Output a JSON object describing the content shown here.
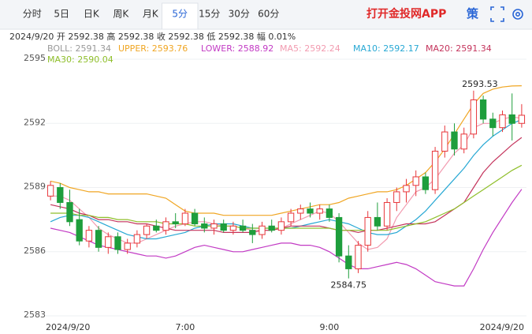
{
  "tabs": [
    "分时",
    "5日",
    "日K",
    "周K",
    "月K",
    "5分",
    "15分",
    "30分",
    "60分"
  ],
  "active_tab": 5,
  "brand": "打开金投网APP",
  "side_button": "策",
  "chart_data": {
    "type": "candlestick",
    "info": "2024/9/20  开 2592.38  高 2592.38  收 2592.38  低 2592.38  幅 0.01%",
    "boll_label": "BOLL: 2591.34",
    "categories": [
      "2024/9/20",
      null,
      null,
      null,
      null,
      null,
      null,
      null,
      null,
      null,
      null,
      null,
      null,
      null,
      "7:00",
      null,
      null,
      null,
      null,
      null,
      null,
      null,
      null,
      null,
      null,
      null,
      null,
      null,
      null,
      "9:00",
      null,
      null,
      null,
      null,
      null,
      null,
      null,
      null,
      null,
      null,
      null,
      null,
      null,
      null,
      null,
      null,
      null,
      null,
      null,
      "2024/9/20"
    ],
    "open": [
      2588.6,
      2589.0,
      2588.3,
      2587.5,
      2586.5,
      2587.0,
      2586.2,
      2586.7,
      2586.1,
      2586.4,
      2586.8,
      2587.2,
      2587.0,
      2587.4,
      2587.3,
      2587.8,
      2587.3,
      2587.1,
      2587.3,
      2587.0,
      2587.2,
      2587.0,
      2586.8,
      2587.2,
      2587.0,
      2587.4,
      2587.8,
      2588.0,
      2587.8,
      2588.0,
      2587.6,
      2585.8,
      2585.2,
      2586.3,
      2587.6,
      2587.2,
      2588.3,
      2588.8,
      2589.1,
      2589.5,
      2588.9,
      2590.7,
      2591.6,
      2590.8,
      2591.5,
      2593.1,
      2592.2,
      2591.8,
      2592.4,
      2592.0
    ],
    "high": [
      2589.3,
      2589.2,
      2588.9,
      2588.0,
      2587.2,
      2587.2,
      2586.9,
      2586.9,
      2586.6,
      2587.0,
      2587.3,
      2587.5,
      2587.6,
      2587.8,
      2588.0,
      2588.0,
      2587.6,
      2587.5,
      2587.5,
      2587.4,
      2587.5,
      2587.3,
      2587.4,
      2587.5,
      2587.6,
      2588.0,
      2588.2,
      2588.3,
      2588.2,
      2588.2,
      2587.8,
      2586.3,
      2586.5,
      2587.9,
      2588.3,
      2588.5,
      2589.0,
      2589.4,
      2589.8,
      2589.7,
      2590.9,
      2591.9,
      2592.0,
      2591.8,
      2593.53,
      2593.3,
      2592.5,
      2592.6,
      2593.4,
      2592.9
    ],
    "low": [
      2588.4,
      2588.0,
      2587.2,
      2586.3,
      2586.2,
      2586.0,
      2585.9,
      2585.9,
      2585.9,
      2586.2,
      2586.6,
      2586.9,
      2586.8,
      2587.1,
      2587.2,
      2587.2,
      2586.9,
      2586.8,
      2586.9,
      2586.8,
      2586.9,
      2586.4,
      2586.6,
      2586.9,
      2586.8,
      2587.2,
      2587.5,
      2587.6,
      2587.5,
      2587.4,
      2585.5,
      2584.75,
      2585.0,
      2586.0,
      2587.0,
      2587.0,
      2587.9,
      2588.3,
      2588.6,
      2588.7,
      2588.7,
      2590.4,
      2590.5,
      2590.6,
      2591.3,
      2592.0,
      2591.4,
      2591.6,
      2591.2,
      2591.8
    ],
    "close": [
      2589.1,
      2588.3,
      2587.4,
      2586.5,
      2587.0,
      2586.2,
      2586.7,
      2586.1,
      2586.4,
      2586.8,
      2587.2,
      2587.0,
      2587.4,
      2587.3,
      2587.8,
      2587.3,
      2587.1,
      2587.3,
      2587.0,
      2587.2,
      2587.0,
      2586.8,
      2587.2,
      2587.0,
      2587.4,
      2587.8,
      2588.0,
      2587.8,
      2588.0,
      2587.6,
      2585.8,
      2585.2,
      2586.3,
      2587.6,
      2587.2,
      2588.3,
      2588.8,
      2589.1,
      2589.5,
      2588.9,
      2590.7,
      2591.6,
      2590.8,
      2591.5,
      2593.1,
      2592.2,
      2591.8,
      2592.4,
      2592.0,
      2592.38
    ],
    "up_color": "#e8363a",
    "down_color": "#1e9e3c",
    "series": [
      {
        "name": "UPPER: 2593.76",
        "color": "#f0a623",
        "values": [
          2589.3,
          2589.2,
          2589.0,
          2588.9,
          2588.8,
          2588.8,
          2588.7,
          2588.7,
          2588.7,
          2588.7,
          2588.7,
          2588.6,
          2588.5,
          2588.2,
          2587.9,
          2587.8,
          2587.8,
          2587.8,
          2587.7,
          2587.7,
          2587.7,
          2587.7,
          2587.7,
          2587.7,
          2587.8,
          2587.9,
          2588.0,
          2588.1,
          2588.2,
          2588.2,
          2588.3,
          2588.5,
          2588.6,
          2588.7,
          2588.8,
          2588.8,
          2588.9,
          2589.1,
          2589.4,
          2589.7,
          2590.2,
          2590.8,
          2591.5,
          2592.2,
          2592.9,
          2593.4,
          2593.6,
          2593.7,
          2593.75,
          2593.76
        ]
      },
      {
        "name": "LOWER: 2588.92",
        "color": "#c23ac4",
        "values": [
          2587.1,
          2587.0,
          2586.9,
          2586.7,
          2586.5,
          2586.3,
          2586.2,
          2586.1,
          2586.0,
          2585.9,
          2585.8,
          2585.8,
          2585.7,
          2585.8,
          2586.0,
          2586.2,
          2586.3,
          2586.2,
          2586.1,
          2586.0,
          2586.0,
          2586.1,
          2586.2,
          2586.3,
          2586.4,
          2586.4,
          2586.3,
          2586.3,
          2586.2,
          2586.0,
          2585.7,
          2585.4,
          2585.2,
          2585.2,
          2585.3,
          2585.4,
          2585.5,
          2585.4,
          2585.2,
          2584.9,
          2584.6,
          2584.5,
          2584.4,
          2584.4,
          2585.2,
          2586.1,
          2586.9,
          2587.6,
          2588.3,
          2588.92
        ]
      },
      {
        "name": "MA5: 2592.24",
        "color": "#f29bb0",
        "values": [
          2588.6,
          2588.6,
          2588.4,
          2588.0,
          2587.6,
          2587.1,
          2586.8,
          2586.6,
          2586.4,
          2586.4,
          2586.6,
          2586.8,
          2587.0,
          2587.2,
          2587.3,
          2587.4,
          2587.4,
          2587.3,
          2587.2,
          2587.2,
          2587.1,
          2587.0,
          2587.0,
          2587.0,
          2587.1,
          2587.3,
          2587.5,
          2587.7,
          2587.9,
          2587.8,
          2587.4,
          2586.9,
          2586.4,
          2586.1,
          2586.2,
          2586.6,
          2587.6,
          2588.2,
          2588.8,
          2589.0,
          2589.4,
          2590.0,
          2590.6,
          2591.0,
          2591.8,
          2592.0,
          2592.0,
          2592.2,
          2592.3,
          2592.24
        ]
      },
      {
        "name": "MA10: 2592.17",
        "color": "#27a8d4",
        "values": [
          2587.4,
          2587.6,
          2587.7,
          2587.7,
          2587.6,
          2587.4,
          2587.2,
          2587.0,
          2586.8,
          2586.7,
          2586.6,
          2586.6,
          2586.7,
          2586.8,
          2586.9,
          2587.1,
          2587.2,
          2587.3,
          2587.3,
          2587.3,
          2587.2,
          2587.1,
          2587.1,
          2587.1,
          2587.1,
          2587.1,
          2587.2,
          2587.3,
          2587.4,
          2587.5,
          2587.4,
          2587.3,
          2587.1,
          2586.9,
          2586.8,
          2586.8,
          2586.9,
          2587.2,
          2587.5,
          2587.9,
          2588.4,
          2588.9,
          2589.4,
          2589.9,
          2590.5,
          2591.0,
          2591.4,
          2591.7,
          2592.0,
          2592.17
        ]
      },
      {
        "name": "MA20: 2591.34",
        "color": "#c4345c",
        "values": [
          2588.2,
          2588.1,
          2588.0,
          2587.8,
          2587.7,
          2587.5,
          2587.5,
          2587.4,
          2587.4,
          2587.3,
          2587.3,
          2587.2,
          2587.1,
          2587.0,
          2587.0,
          2587.0,
          2587.0,
          2587.0,
          2586.9,
          2586.9,
          2586.9,
          2586.9,
          2587.0,
          2587.0,
          2587.1,
          2587.2,
          2587.2,
          2587.2,
          2587.2,
          2587.1,
          2587.0,
          2587.0,
          2586.9,
          2587.0,
          2587.0,
          2587.1,
          2587.2,
          2587.3,
          2587.3,
          2587.3,
          2587.4,
          2587.7,
          2588.0,
          2588.3,
          2589.0,
          2589.7,
          2590.2,
          2590.6,
          2591.0,
          2591.34
        ]
      },
      {
        "name": "MA30: 2590.04",
        "color": "#8fbf2a",
        "values": [
          2587.8,
          2587.8,
          2587.8,
          2587.7,
          2587.7,
          2587.6,
          2587.6,
          2587.5,
          2587.5,
          2587.4,
          2587.4,
          2587.4,
          2587.3,
          2587.3,
          2587.3,
          2587.2,
          2587.2,
          2587.2,
          2587.2,
          2587.2,
          2587.1,
          2587.1,
          2587.1,
          2587.1,
          2587.1,
          2587.1,
          2587.1,
          2587.1,
          2587.1,
          2587.1,
          2587.0,
          2587.0,
          2587.0,
          2587.0,
          2587.0,
          2587.0,
          2587.1,
          2587.2,
          2587.3,
          2587.4,
          2587.6,
          2587.8,
          2588.0,
          2588.3,
          2588.6,
          2588.9,
          2589.2,
          2589.5,
          2589.8,
          2590.04
        ]
      }
    ],
    "annotations": [
      {
        "text": "2593.53",
        "index": 44
      },
      {
        "text": "2584.75",
        "index": 31
      }
    ],
    "ylim": [
      2583,
      2595
    ],
    "yticks": [
      2583,
      2586,
      2589,
      2592,
      2595
    ],
    "grid": true
  }
}
